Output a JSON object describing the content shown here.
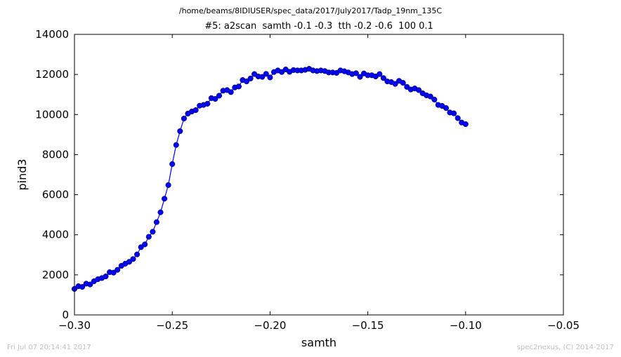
{
  "header": {
    "file_path": "/home/beams/8IDIUSER/spec_data/2017/July2017/Tadp_19nm_135C",
    "scan_title": "#5: a2scan  samth -0.1 -0.3  tth -0.2 -0.6  100 0.1"
  },
  "footer": {
    "timestamp": "Fri Jul 07 20:14:41 2017",
    "credit": "spec2nexus, (C) 2014-2017"
  },
  "chart_data": {
    "type": "line",
    "title": "#5: a2scan  samth -0.1 -0.3  tth -0.2 -0.6  100 0.1",
    "xlabel": "samth",
    "ylabel": "pind3",
    "xlim": [
      -0.3,
      -0.05
    ],
    "ylim": [
      0,
      14000
    ],
    "x_ticks": [
      -0.3,
      -0.25,
      -0.2,
      -0.15,
      -0.1,
      -0.05
    ],
    "x_tick_labels": [
      "−0.30",
      "−0.25",
      "−0.20",
      "−0.15",
      "−0.10",
      "−0.05"
    ],
    "y_ticks": [
      0,
      2000,
      4000,
      6000,
      8000,
      10000,
      12000,
      14000
    ],
    "y_tick_labels": [
      "0",
      "2000",
      "4000",
      "6000",
      "8000",
      "10000",
      "12000",
      "14000"
    ],
    "grid": false,
    "line_color": "#0000ff",
    "marker": "circle",
    "series": [
      {
        "x": [
          -0.3,
          -0.298,
          -0.296,
          -0.294,
          -0.292,
          -0.29,
          -0.288,
          -0.286,
          -0.284,
          -0.282,
          -0.28,
          -0.278,
          -0.276,
          -0.274,
          -0.272,
          -0.27,
          -0.268,
          -0.266,
          -0.264,
          -0.262,
          -0.26,
          -0.258,
          -0.256,
          -0.254,
          -0.252,
          -0.25,
          -0.248,
          -0.246,
          -0.244,
          -0.242,
          -0.24,
          -0.238,
          -0.236,
          -0.234,
          -0.232,
          -0.23,
          -0.228,
          -0.226,
          -0.224,
          -0.222,
          -0.22,
          -0.218,
          -0.216,
          -0.214,
          -0.212,
          -0.21,
          -0.208,
          -0.206,
          -0.204,
          -0.202,
          -0.2,
          -0.198,
          -0.196,
          -0.194,
          -0.192,
          -0.19,
          -0.188,
          -0.186,
          -0.184,
          -0.182,
          -0.18,
          -0.178,
          -0.176,
          -0.174,
          -0.172,
          -0.17,
          -0.168,
          -0.166,
          -0.164,
          -0.162,
          -0.16,
          -0.158,
          -0.156,
          -0.154,
          -0.152,
          -0.15,
          -0.148,
          -0.146,
          -0.144,
          -0.142,
          -0.14,
          -0.138,
          -0.136,
          -0.134,
          -0.132,
          -0.13,
          -0.128,
          -0.126,
          -0.124,
          -0.122,
          -0.12,
          -0.118,
          -0.116,
          -0.114,
          -0.112,
          -0.11,
          -0.108,
          -0.106,
          -0.104,
          -0.102,
          -0.1
        ],
        "y": [
          1300,
          1430,
          1400,
          1560,
          1520,
          1680,
          1780,
          1840,
          1920,
          2130,
          2110,
          2250,
          2450,
          2560,
          2650,
          2790,
          3020,
          3380,
          3520,
          3900,
          4150,
          4630,
          5120,
          5800,
          6480,
          7530,
          8480,
          9170,
          9800,
          10050,
          10150,
          10220,
          10440,
          10480,
          10540,
          10820,
          10780,
          10940,
          11190,
          11220,
          11120,
          11350,
          11400,
          11720,
          11650,
          11800,
          12020,
          11900,
          11880,
          12030,
          11850,
          12120,
          12200,
          12120,
          12250,
          12130,
          12220,
          12200,
          12200,
          12230,
          12280,
          12200,
          12170,
          12200,
          12170,
          12100,
          12100,
          12080,
          12200,
          12160,
          12100,
          12020,
          12060,
          11880,
          12050,
          11960,
          11960,
          11900,
          12020,
          11820,
          11650,
          11620,
          11530,
          11680,
          11580,
          11380,
          11250,
          11300,
          11220,
          11060,
          10960,
          10900,
          10750,
          10480,
          10430,
          10320,
          10100,
          10060,
          9820,
          9600,
          9520
        ]
      }
    ]
  }
}
